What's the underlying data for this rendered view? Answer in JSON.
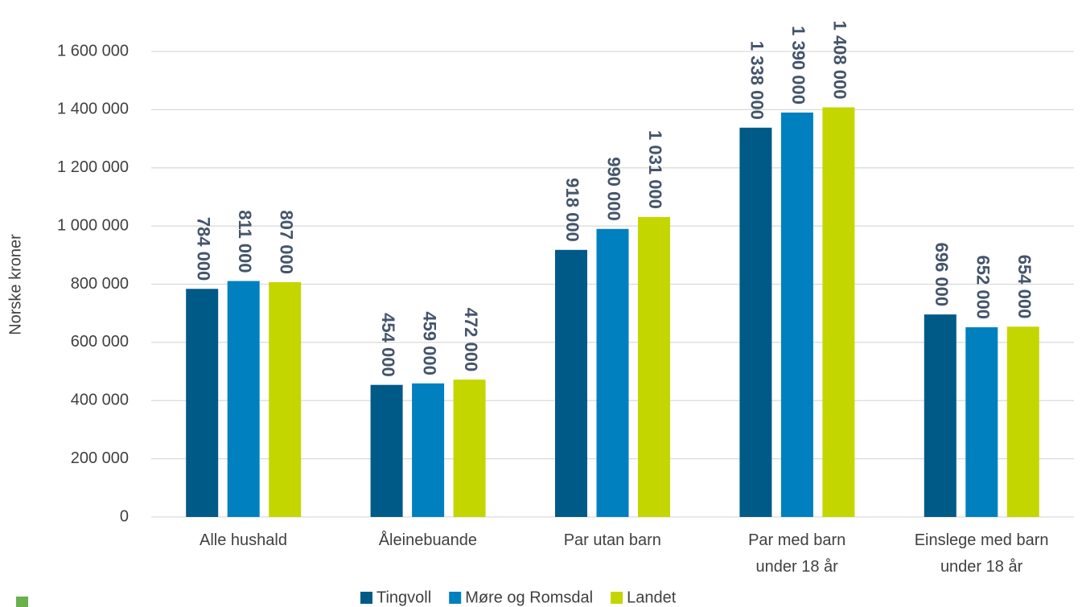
{
  "chart_data": {
    "type": "bar",
    "y_axis_label": "Norske kroner",
    "categories": [
      "Alle hushald",
      "Åleinebuande",
      "Par utan barn",
      "Par med barn\nunder 18 år",
      "Einslege med barn\nunder 18 år"
    ],
    "series": [
      {
        "name": "Tingvoll",
        "color": "#005a87",
        "values": [
          784000,
          454000,
          918000,
          1338000,
          696000
        ],
        "value_labels": [
          "784 000",
          "454 000",
          "918 000",
          "1 338 000",
          "696 000"
        ]
      },
      {
        "name": "Møre og Romsdal",
        "color": "#0080be",
        "values": [
          811000,
          459000,
          990000,
          1390000,
          652000
        ],
        "value_labels": [
          "811 000",
          "459 000",
          "990 000",
          "1 390 000",
          "652 000"
        ]
      },
      {
        "name": "Landet",
        "color": "#c4d600",
        "values": [
          807000,
          472000,
          1031000,
          1408000,
          654000
        ],
        "value_labels": [
          "807 000",
          "472 000",
          "1 031 000",
          "1 408 000",
          "654 000"
        ]
      }
    ],
    "ylim": [
      0,
      1600000
    ],
    "yticks": [
      0,
      {
        "value": 200000,
        "label": "200 000"
      },
      {
        "value": 400000,
        "label": "400 000"
      },
      {
        "value": 600000,
        "label": "600 000"
      },
      {
        "value": 800000,
        "label": "800 000"
      },
      {
        "value": 1000000,
        "label": "1 000 000"
      },
      {
        "value": 1200000,
        "label": "1 200 000"
      },
      {
        "value": 1400000,
        "label": "1 400 000"
      },
      {
        "value": 1600000,
        "label": "1 600 000"
      }
    ],
    "grid": true,
    "legend": "bottom"
  }
}
